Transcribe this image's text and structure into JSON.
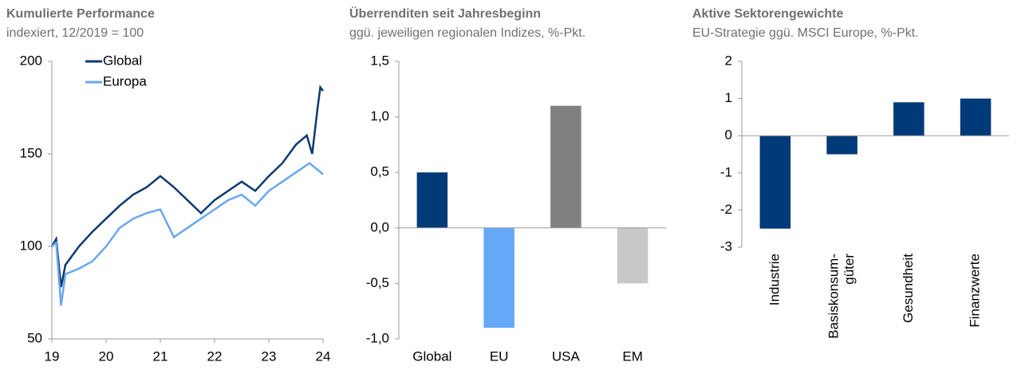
{
  "chart_data": [
    {
      "type": "line",
      "title": "Kumulierte Performance",
      "subtitle": "indexiert, 12/2019 = 100",
      "series": [
        {
          "name": "Global",
          "color": "#0b3a70",
          "x": [
            19.0,
            19.08,
            19.17,
            19.25,
            19.5,
            19.75,
            20.0,
            20.25,
            20.5,
            20.75,
            21.0,
            21.25,
            21.5,
            21.75,
            22.0,
            22.25,
            22.5,
            22.75,
            23.0,
            23.25,
            23.5,
            23.7,
            23.8,
            23.9,
            23.95,
            24.0
          ],
          "values": [
            100,
            104,
            78,
            90,
            100,
            108,
            115,
            122,
            128,
            132,
            138,
            132,
            125,
            118,
            125,
            130,
            135,
            130,
            138,
            145,
            155,
            160,
            150,
            175,
            186,
            184
          ]
        },
        {
          "name": "Europa",
          "color": "#6aa6f0",
          "x": [
            19.0,
            19.08,
            19.17,
            19.25,
            19.5,
            19.75,
            20.0,
            20.25,
            20.5,
            20.75,
            21.0,
            21.25,
            21.5,
            21.75,
            22.0,
            22.25,
            22.5,
            22.75,
            23.0,
            23.25,
            23.5,
            23.75,
            24.0
          ],
          "values": [
            100,
            102,
            68,
            85,
            88,
            92,
            100,
            110,
            115,
            118,
            120,
            105,
            110,
            115,
            120,
            125,
            128,
            122,
            130,
            135,
            140,
            145,
            139
          ]
        }
      ],
      "xlim": [
        19,
        24
      ],
      "xticks": [
        19,
        20,
        21,
        22,
        23,
        24
      ],
      "ylim": [
        50,
        200
      ],
      "yticks": [
        50,
        100,
        150,
        200
      ],
      "legend": "top-left"
    },
    {
      "type": "bar",
      "title": "Überrenditen seit Jahresbeginn",
      "subtitle": "ggü. jeweiligen regionalen Indizes, %-Pkt.",
      "categories": [
        "Global",
        "EU",
        "USA",
        "EM"
      ],
      "values": [
        0.5,
        -0.9,
        1.1,
        -0.5
      ],
      "colors": [
        "#003a78",
        "#66a8f8",
        "#808080",
        "#c8c8c8"
      ],
      "ylim": [
        -1,
        1.5
      ],
      "yticks": [
        {
          "value": -1,
          "label": "-1,0"
        },
        {
          "value": -0.5,
          "label": "-0,5"
        },
        {
          "value": 0,
          "label": "0,0"
        },
        {
          "value": 0.5,
          "label": "0,5"
        },
        {
          "value": 1,
          "label": "1,0"
        },
        {
          "value": 1.5,
          "label": "1,5"
        }
      ]
    },
    {
      "type": "bar",
      "title": "Aktive Sektorengewichte",
      "subtitle": "EU-Strategie ggü. MSCI Europe, %-Pkt.",
      "categories": [
        "Industrie",
        "Basiskonsum-\ngüter",
        "Gesundheit",
        "Finanzwerte"
      ],
      "values": [
        -2.5,
        -0.5,
        0.9,
        1.0
      ],
      "colors": [
        "#003a78",
        "#003a78",
        "#003a78",
        "#003a78"
      ],
      "rotate_labels": true,
      "ylim": [
        -3,
        2
      ],
      "yticks": [
        -3,
        -2,
        -1,
        0,
        1,
        2
      ]
    }
  ]
}
